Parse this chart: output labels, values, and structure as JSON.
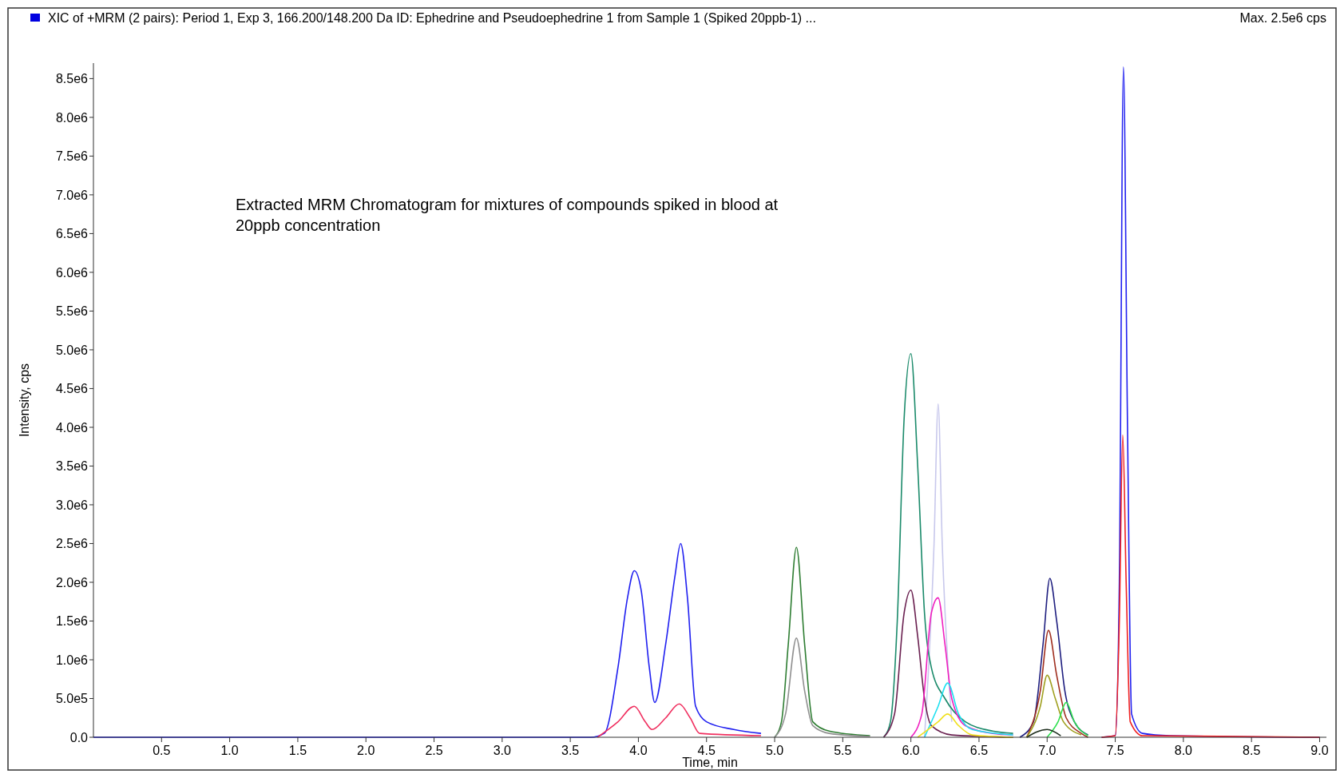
{
  "chart_data": {
    "type": "line",
    "title": "XIC of +MRM (2 pairs): Period 1, Exp 3, 166.200/148.200 Da ID: Ephedrine and Pseudoephedrine 1 from Sample 1 (Spiked 20ppb-1) ...",
    "xlabel": "Time, min",
    "ylabel": "Intensity, cps",
    "annotations": [
      "Max. 2.5e6 cps",
      "Extracted MRM Chromatogram for mixtures of compounds spiked in blood at 20ppb concentration"
    ],
    "xlim": [
      0,
      9.05
    ],
    "ylim": [
      0,
      8700000
    ],
    "xticks": [
      0.5,
      {
        "value": 1,
        "label": "1.0"
      },
      1.5,
      {
        "value": 2,
        "label": "2.0"
      },
      2.5,
      {
        "value": 3,
        "label": "3.0"
      },
      3.5,
      {
        "value": 4,
        "label": "4.0"
      },
      4.5,
      {
        "value": 5,
        "label": "5.0"
      },
      5.5,
      {
        "value": 6,
        "label": "6.0"
      },
      6.5,
      {
        "value": 7,
        "label": "7.0"
      },
      7.5,
      {
        "value": 8,
        "label": "8.0"
      },
      8.5,
      {
        "value": 9,
        "label": "9.0"
      }
    ],
    "yticks": [
      {
        "value": 0,
        "label": "0.0"
      },
      {
        "value": 500000,
        "label": "5.0e5"
      },
      {
        "value": 1000000,
        "label": "1.0e6"
      },
      {
        "value": 1500000,
        "label": "1.5e6"
      },
      {
        "value": 2000000,
        "label": "2.0e6"
      },
      {
        "value": 2500000,
        "label": "2.5e6"
      },
      {
        "value": 3000000,
        "label": "3.0e6"
      },
      {
        "value": 3500000,
        "label": "3.5e6"
      },
      {
        "value": 4000000,
        "label": "4.0e6"
      },
      {
        "value": 4500000,
        "label": "4.5e6"
      },
      {
        "value": 5000000,
        "label": "5.0e6"
      },
      {
        "value": 5500000,
        "label": "5.5e6"
      },
      {
        "value": 6000000,
        "label": "6.0e6"
      },
      {
        "value": 6500000,
        "label": "6.5e6"
      },
      {
        "value": 7000000,
        "label": "7.0e6"
      },
      {
        "value": 7500000,
        "label": "7.5e6"
      },
      {
        "value": 8000000,
        "label": "8.0e6"
      },
      {
        "value": 8500000,
        "label": "8.5e6"
      }
    ],
    "marker": "none",
    "line_style": "solid",
    "series": [
      {
        "color": "#2020f0",
        "x": [
          0,
          3.65,
          3.75,
          3.85,
          3.92,
          3.97,
          4.02,
          4.08,
          4.12,
          4.2,
          4.27,
          4.31,
          4.36,
          4.42,
          4.5,
          4.7,
          4.9
        ],
        "values": [
          0,
          0,
          50000,
          900000,
          1800000,
          2150000,
          1900000,
          900000,
          450000,
          1200000,
          2100000,
          2500000,
          1800000,
          400000,
          200000,
          100000,
          50000
        ]
      },
      {
        "color": "#f03060",
        "x": [
          3.7,
          3.85,
          3.97,
          4.05,
          4.1,
          4.2,
          4.3,
          4.38,
          4.45,
          4.9
        ],
        "values": [
          0,
          200000,
          400000,
          200000,
          100000,
          250000,
          430000,
          250000,
          50000,
          20000
        ]
      },
      {
        "color": "#2e7d32",
        "x": [
          5.0,
          5.05,
          5.1,
          5.16,
          5.22,
          5.28,
          5.4,
          5.7
        ],
        "values": [
          0,
          200000,
          1200000,
          2450000,
          1200000,
          200000,
          80000,
          20000
        ]
      },
      {
        "color": "#909090",
        "x": [
          5.0,
          5.08,
          5.16,
          5.22,
          5.28,
          5.4,
          5.7
        ],
        "values": [
          0,
          300000,
          1280000,
          600000,
          150000,
          50000,
          10000
        ]
      },
      {
        "color": "#c8c8ec",
        "x": [
          6.1,
          6.17,
          6.2,
          6.23,
          6.3
        ],
        "values": [
          0,
          2500000,
          4300000,
          2500000,
          200000
        ]
      },
      {
        "color": "#1a8a6a",
        "x": [
          5.8,
          5.85,
          5.9,
          5.95,
          6.0,
          6.05,
          6.1,
          6.15,
          6.25,
          6.4,
          6.6,
          6.75
        ],
        "values": [
          0,
          200000,
          1500000,
          4100000,
          4950000,
          3500000,
          1600000,
          900000,
          500000,
          200000,
          80000,
          50000
        ]
      },
      {
        "color": "#6a2050",
        "x": [
          5.8,
          5.88,
          5.95,
          6.0,
          6.05,
          6.1,
          6.15,
          6.3,
          6.75
        ],
        "values": [
          0,
          300000,
          1600000,
          1900000,
          1300000,
          500000,
          150000,
          30000,
          0
        ]
      },
      {
        "color": "#f020c0",
        "x": [
          6.0,
          6.08,
          6.15,
          6.2,
          6.25,
          6.3,
          6.4,
          6.6,
          6.75
        ],
        "values": [
          0,
          300000,
          1600000,
          1800000,
          1200000,
          500000,
          150000,
          50000,
          30000
        ]
      },
      {
        "color": "#20e0f0",
        "x": [
          6.1,
          6.2,
          6.27,
          6.35,
          6.45,
          6.75
        ],
        "values": [
          0,
          400000,
          700000,
          300000,
          100000,
          30000
        ]
      },
      {
        "color": "#f0e020",
        "x": [
          6.05,
          6.2,
          6.27,
          6.35,
          6.45,
          6.75
        ],
        "values": [
          0,
          200000,
          300000,
          150000,
          30000,
          0
        ]
      },
      {
        "color": "#202080",
        "x": [
          6.8,
          6.9,
          6.97,
          7.02,
          7.07,
          7.13,
          7.2,
          7.3
        ],
        "values": [
          0,
          200000,
          1200000,
          2050000,
          1500000,
          600000,
          200000,
          30000
        ]
      },
      {
        "color": "#a03020",
        "x": [
          6.85,
          6.95,
          7.01,
          7.07,
          7.14,
          7.25,
          7.3
        ],
        "values": [
          0,
          600000,
          1380000,
          800000,
          250000,
          50000,
          0
        ]
      },
      {
        "color": "#a0a020",
        "x": [
          6.85,
          6.95,
          7.0,
          7.06,
          7.12,
          7.25
        ],
        "values": [
          0,
          400000,
          800000,
          500000,
          200000,
          30000
        ]
      },
      {
        "color": "#30e050",
        "x": [
          7.0,
          7.08,
          7.14,
          7.2,
          7.3
        ],
        "values": [
          0,
          200000,
          450000,
          200000,
          20000
        ]
      },
      {
        "color": "#203020",
        "x": [
          6.85,
          7.0,
          7.1
        ],
        "values": [
          0,
          100000,
          20000
        ]
      },
      {
        "color": "#2020f0",
        "x": [
          7.4,
          7.5,
          7.53,
          7.56,
          7.59,
          7.62,
          7.7,
          7.9,
          9.0
        ],
        "values": [
          0,
          20000,
          2000000,
          8650000,
          4000000,
          300000,
          50000,
          20000,
          0
        ]
      },
      {
        "color": "#f02020",
        "x": [
          7.4,
          7.5,
          7.53,
          7.555,
          7.58,
          7.61,
          7.7,
          9.0
        ],
        "values": [
          0,
          20000,
          1500000,
          3900000,
          2000000,
          200000,
          20000,
          0
        ]
      }
    ]
  }
}
